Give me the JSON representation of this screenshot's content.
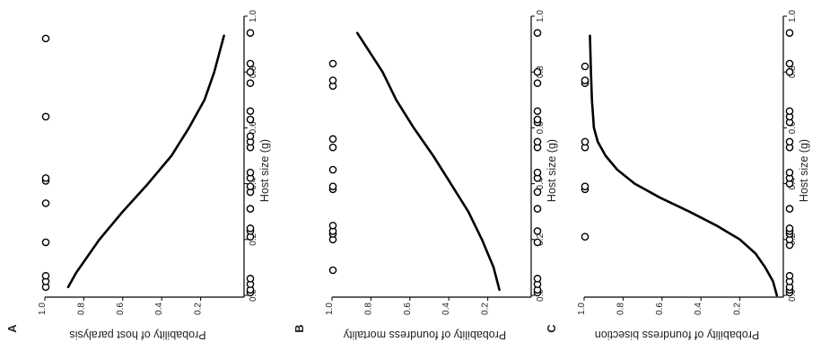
{
  "chart_data": [
    {
      "type": "scatter",
      "panel_label": "A",
      "xlabel": "Host size (g)",
      "ylabel": "Probability of host paralysis",
      "xlim": [
        0,
        1
      ],
      "ylim": [
        0,
        1
      ],
      "x_ticks": [
        "0.0",
        "0.2",
        "0.4",
        "0.6",
        "0.8",
        "1.0"
      ],
      "y_ticks": [
        "0.2",
        "0.4",
        "0.6",
        "0.8",
        "1.0"
      ],
      "orientation": "rotated 90 degrees clockwise",
      "grid": false,
      "curve": {
        "x": [
          0.03,
          0.08,
          0.2,
          0.3,
          0.4,
          0.5,
          0.6,
          0.7,
          0.8,
          0.93
        ],
        "y": [
          0.88,
          0.84,
          0.72,
          0.6,
          0.47,
          0.35,
          0.26,
          0.18,
          0.13,
          0.08
        ]
      },
      "points": {
        "x": [
          0.01,
          0.02,
          0.04,
          0.06,
          0.21,
          0.23,
          0.24,
          0.31,
          0.37,
          0.39,
          0.42,
          0.44,
          0.53,
          0.55,
          0.57,
          0.63,
          0.66,
          0.76,
          0.8,
          0.83,
          0.94,
          0.03,
          0.05,
          0.07,
          0.19,
          0.33,
          0.41,
          0.42,
          0.64,
          0.92
        ],
        "y": [
          0,
          0,
          0,
          0,
          0,
          0,
          0,
          0,
          0,
          0,
          0,
          0,
          0,
          0,
          0,
          0,
          0,
          0,
          0,
          0,
          0,
          1,
          1,
          1,
          1,
          1,
          1,
          1,
          1,
          1
        ]
      }
    },
    {
      "type": "scatter",
      "panel_label": "B",
      "xlabel": "Host size (g)",
      "ylabel": "Probability of foundress mortality",
      "xlim": [
        0,
        1
      ],
      "ylim": [
        0,
        1
      ],
      "x_ticks": [
        "0.0",
        "0.2",
        "0.4",
        "0.6",
        "0.8",
        "1.0"
      ],
      "y_ticks": [
        "0.2",
        "0.4",
        "0.6",
        "0.8",
        "1.0"
      ],
      "orientation": "rotated 90 degrees clockwise",
      "grid": false,
      "curve": {
        "x": [
          0.02,
          0.1,
          0.2,
          0.3,
          0.4,
          0.5,
          0.6,
          0.7,
          0.8,
          0.94
        ],
        "y": [
          0.14,
          0.17,
          0.23,
          0.3,
          0.39,
          0.48,
          0.58,
          0.67,
          0.74,
          0.87
        ]
      },
      "points": {
        "x": [
          0.01,
          0.02,
          0.04,
          0.06,
          0.19,
          0.23,
          0.31,
          0.37,
          0.42,
          0.44,
          0.53,
          0.55,
          0.62,
          0.63,
          0.66,
          0.76,
          0.8,
          0.94,
          0.09,
          0.2,
          0.22,
          0.23,
          0.25,
          0.38,
          0.39,
          0.45,
          0.53,
          0.56,
          0.75,
          0.77,
          0.83
        ],
        "y": [
          0,
          0,
          0,
          0,
          0,
          0,
          0,
          0,
          0,
          0,
          0,
          0,
          0,
          0,
          0,
          0,
          0,
          0,
          1,
          1,
          1,
          1,
          1,
          1,
          1,
          1,
          1,
          1,
          1,
          1,
          1
        ]
      }
    },
    {
      "type": "scatter",
      "panel_label": "C",
      "xlabel": "Host size (g)",
      "ylabel": "Probability of foundress bisection",
      "xlim": [
        0,
        1
      ],
      "ylim": [
        0,
        1
      ],
      "x_ticks": [
        "0.0",
        "0.2",
        "0.4",
        "0.6",
        "0.8",
        "1.0"
      ],
      "y_ticks": [
        "0.2",
        "0.4",
        "0.6",
        "0.8",
        "1.0"
      ],
      "orientation": "rotated 90 degrees clockwise",
      "grid": false,
      "curve": {
        "x": [
          0.0,
          0.05,
          0.1,
          0.15,
          0.2,
          0.25,
          0.3,
          0.35,
          0.4,
          0.45,
          0.5,
          0.55,
          0.6,
          0.7,
          0.8,
          0.93
        ],
        "y": [
          0.01,
          0.03,
          0.07,
          0.12,
          0.2,
          0.32,
          0.46,
          0.61,
          0.74,
          0.83,
          0.89,
          0.93,
          0.95,
          0.96,
          0.965,
          0.97
        ]
      },
      "points": {
        "x": [
          0.01,
          0.02,
          0.03,
          0.05,
          0.07,
          0.18,
          0.2,
          0.22,
          0.23,
          0.24,
          0.31,
          0.4,
          0.42,
          0.44,
          0.53,
          0.55,
          0.62,
          0.64,
          0.66,
          0.8,
          0.83,
          0.94,
          0.21,
          0.38,
          0.39,
          0.53,
          0.55,
          0.76,
          0.77,
          0.82
        ],
        "y": [
          0,
          0,
          0,
          0,
          0,
          0,
          0,
          0,
          0,
          0,
          0,
          0,
          0,
          0,
          0,
          0,
          0,
          0,
          0,
          0,
          0,
          0,
          1,
          1,
          1,
          1,
          1,
          1,
          1,
          1
        ]
      }
    }
  ]
}
